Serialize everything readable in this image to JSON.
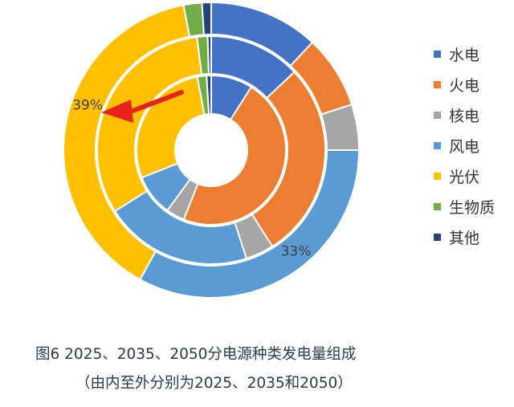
{
  "chart_data": {
    "type": "pie",
    "variant": "nested-donut",
    "categories": [
      "水电",
      "火电",
      "核电",
      "风电",
      "光伏",
      "生物质",
      "其他"
    ],
    "colors": [
      "#4472c4",
      "#ed7d31",
      "#a5a5a5",
      "#5b9bd5",
      "#ffc000",
      "#70ad47",
      "#264478"
    ],
    "series": [
      {
        "values": [
          9,
          47,
          4,
          9,
          28,
          2,
          1
        ]
      },
      {
        "values": [
          13,
          28,
          4,
          21,
          32,
          1.5,
          0.5
        ]
      },
      {
        "values": [
          12,
          8,
          5,
          33,
          39,
          2,
          1
        ]
      }
    ],
    "data_labels": [
      {
        "series": 2,
        "category": "光伏",
        "text": "39%"
      },
      {
        "series": 2,
        "category": "风电",
        "text": "33%"
      }
    ],
    "legend_position": "right",
    "annotation": "red arrow pointing to the 光伏 share of the outer ring"
  },
  "legend": [
    {
      "label": "水电",
      "color": "#4472c4"
    },
    {
      "label": "火电",
      "color": "#ed7d31"
    },
    {
      "label": "核电",
      "color": "#a5a5a5"
    },
    {
      "label": "风电",
      "color": "#5b9bd5"
    },
    {
      "label": "光伏",
      "color": "#ffc000"
    },
    {
      "label": "生物质",
      "color": "#70ad47"
    },
    {
      "label": "其他",
      "color": "#264478"
    }
  ],
  "caption": {
    "line1": "图6  2025、2035、2050分电源种类发电量组成",
    "line2": "（由内至外分别为2025、2035和2050）"
  }
}
